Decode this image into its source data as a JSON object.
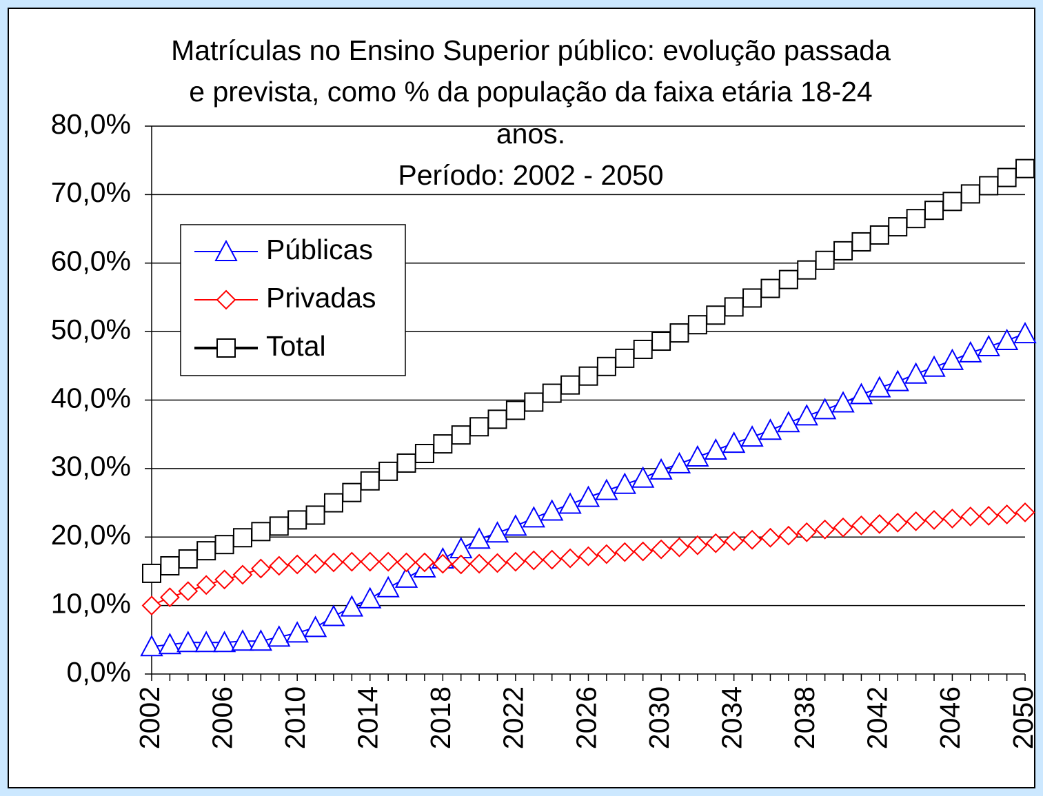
{
  "chart_data": {
    "type": "line",
    "title": [
      "Matrículas no Ensino Superior público: evolução passada",
      "e prevista, como % da população da faixa etária 18-24",
      "anos."
    ],
    "subtitle": "Período: 2002 - 2050",
    "categories": [
      "2002",
      null,
      null,
      null,
      "2006",
      null,
      null,
      null,
      "2010",
      null,
      null,
      null,
      "2014",
      null,
      null,
      null,
      "2018",
      null,
      null,
      null,
      "2022",
      null,
      null,
      null,
      "2026",
      null,
      null,
      null,
      "2030",
      null,
      null,
      null,
      "2034",
      null,
      null,
      null,
      "2038",
      null,
      null,
      null,
      "2042",
      null,
      null,
      null,
      "2046",
      null,
      null,
      null,
      "2050"
    ],
    "series": [
      {
        "name": "Públicas",
        "color": "#0000ff",
        "marker": "triangle",
        "values": [
          4.0,
          4.3,
          4.6,
          4.6,
          4.6,
          4.8,
          4.8,
          5.4,
          6.0,
          6.8,
          8.4,
          9.8,
          11.0,
          12.6,
          14.0,
          15.5,
          16.8,
          18.3,
          19.7,
          20.6,
          21.6,
          22.8,
          23.8,
          24.8,
          25.8,
          26.8,
          27.7,
          28.6,
          29.8,
          30.7,
          31.7,
          32.7,
          33.7,
          34.6,
          35.6,
          36.7,
          37.7,
          38.6,
          39.6,
          40.8,
          41.8,
          42.7,
          43.8,
          44.8,
          45.8,
          46.9,
          47.8,
          48.7,
          49.7
        ]
      },
      {
        "name": "Privadas",
        "color": "#ff0000",
        "marker": "diamond",
        "values": [
          10.0,
          11.2,
          12.1,
          13.0,
          13.8,
          14.5,
          15.4,
          15.8,
          16.0,
          16.1,
          16.3,
          16.4,
          16.4,
          16.4,
          16.3,
          16.3,
          16.1,
          16.0,
          16.1,
          16.2,
          16.4,
          16.6,
          16.7,
          16.9,
          17.2,
          17.5,
          17.8,
          17.9,
          18.2,
          18.5,
          18.8,
          19.1,
          19.4,
          19.6,
          19.9,
          20.2,
          20.7,
          21.1,
          21.4,
          21.7,
          21.9,
          22.1,
          22.3,
          22.5,
          22.7,
          23.0,
          23.1,
          23.3,
          23.6
        ]
      },
      {
        "name": "Total",
        "color": "#000000",
        "marker": "square",
        "values": [
          14.7,
          15.8,
          16.8,
          18.0,
          18.9,
          19.9,
          20.8,
          21.6,
          22.5,
          23.2,
          25.0,
          26.5,
          28.2,
          29.6,
          30.8,
          32.2,
          33.6,
          34.9,
          36.1,
          37.2,
          38.5,
          39.7,
          41.0,
          42.2,
          43.5,
          44.9,
          46.1,
          47.4,
          48.6,
          49.8,
          51.0,
          52.4,
          53.6,
          54.9,
          56.3,
          57.6,
          59.0,
          60.4,
          61.8,
          63.1,
          64.1,
          65.3,
          66.5,
          67.7,
          69.0,
          70.1,
          71.3,
          72.5,
          73.8
        ]
      }
    ],
    "ylim": [
      0,
      80
    ],
    "yticks": [
      {
        "value": 0,
        "label": "0,0%"
      },
      {
        "value": 10,
        "label": "10,0%"
      },
      {
        "value": 20,
        "label": "20,0%"
      },
      {
        "value": 30,
        "label": "30,0%"
      },
      {
        "value": 40,
        "label": "40,0%"
      },
      {
        "value": 50,
        "label": "50,0%"
      },
      {
        "value": 60,
        "label": "60,0%"
      },
      {
        "value": 70,
        "label": "70,0%"
      },
      {
        "value": 80,
        "label": "80,0%"
      }
    ],
    "grid": true,
    "legend": "upper-left"
  }
}
